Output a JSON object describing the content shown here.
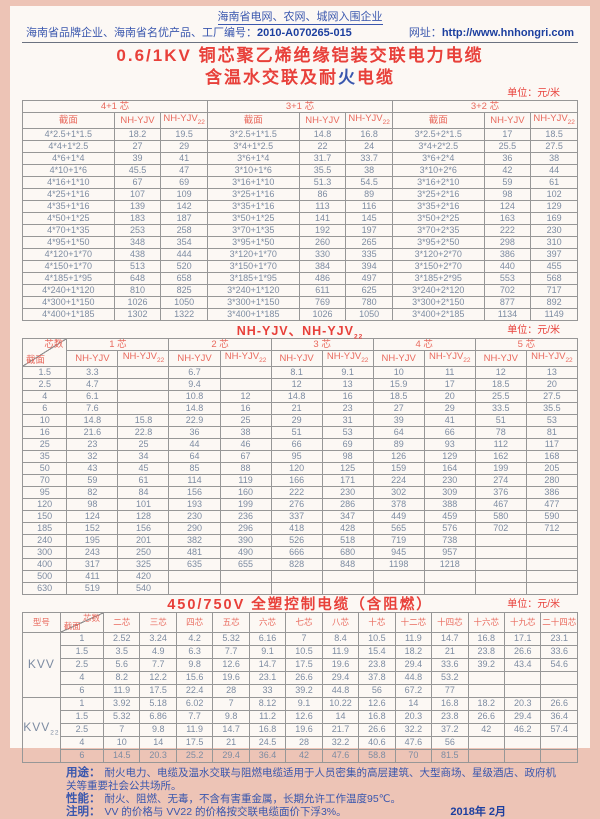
{
  "colors": {
    "accent_red": "#e8403a",
    "header_pink": "#e96a5e",
    "ink_blue": "#3a57ae",
    "bold_blue": "#1c3f9f",
    "data_gray_blue": "#7d8ca2",
    "frame_pink": "#edc4b6"
  },
  "header": {
    "line1": "海南省电网、农网、城网入围企业",
    "line2_prefix": "海南省品牌企业、海南省名优产品、工厂编号：",
    "factory_code": "2010-A070265-015",
    "url_label": "网址：",
    "url": "http://www.hnhongri.com"
  },
  "title": {
    "line1": "0.6/1KV 铜芯聚乙烯绝缘铠装交联电力电缆",
    "subtitle_parts": [
      {
        "text": "含温水交联及耐",
        "color": "#e8403a"
      },
      {
        "text": "火",
        "color": "#3a57ae"
      },
      {
        "text": "电缆",
        "color": "#e8403a"
      }
    ]
  },
  "table1": {
    "unit": "单位：元/米",
    "groups": [
      "4+1 芯",
      "3+1 芯",
      "3+2 芯"
    ],
    "col_headers": [
      {
        "t": "截面"
      },
      {
        "t": "NH-YJV"
      },
      {
        "t": "NH-YJV",
        "sub": "22"
      }
    ],
    "rows": [
      [
        "4*2.5+1*1.5",
        "18.2",
        "19.5",
        "3*2.5+1*1.5",
        "14.8",
        "16.8",
        "3*2.5+2*1.5",
        "17",
        "18.5"
      ],
      [
        "4*4+1*2.5",
        "27",
        "29",
        "3*4+1*2.5",
        "22",
        "24",
        "3*4+2*2.5",
        "25.5",
        "27.5"
      ],
      [
        "4*6+1*4",
        "39",
        "41",
        "3*6+1*4",
        "31.7",
        "33.7",
        "3*6+2*4",
        "36",
        "38"
      ],
      [
        "4*10+1*6",
        "45.5",
        "47",
        "3*10+1*6",
        "35.5",
        "38",
        "3*10+2*6",
        "42",
        "44"
      ],
      [
        "4*16+1*10",
        "67",
        "69",
        "3*16+1*10",
        "51.3",
        "54.5",
        "3*16+2*10",
        "59",
        "61"
      ],
      [
        "4*25+1*16",
        "107",
        "109",
        "3*25+1*16",
        "86",
        "89",
        "3*25+2*16",
        "98",
        "102"
      ],
      [
        "4*35+1*16",
        "139",
        "142",
        "3*35+1*16",
        "113",
        "116",
        "3*35+2*16",
        "124",
        "129"
      ],
      [
        "4*50+1*25",
        "183",
        "187",
        "3*50+1*25",
        "141",
        "145",
        "3*50+2*25",
        "163",
        "169"
      ],
      [
        "4*70+1*35",
        "253",
        "258",
        "3*70+1*35",
        "192",
        "197",
        "3*70+2*35",
        "222",
        "230"
      ],
      [
        "4*95+1*50",
        "348",
        "354",
        "3*95+1*50",
        "260",
        "265",
        "3*95+2*50",
        "298",
        "310"
      ],
      [
        "4*120+1*70",
        "438",
        "444",
        "3*120+1*70",
        "330",
        "335",
        "3*120+2*70",
        "386",
        "397"
      ],
      [
        "4*150+1*70",
        "513",
        "520",
        "3*150+1*70",
        "384",
        "394",
        "3*150+2*70",
        "440",
        "455"
      ],
      [
        "4*185+1*95",
        "648",
        "658",
        "3*185+1*95",
        "486",
        "497",
        "3*185+2*95",
        "553",
        "568"
      ],
      [
        "4*240+1*120",
        "810",
        "825",
        "3*240+1*120",
        "611",
        "625",
        "3*240+2*120",
        "702",
        "717"
      ],
      [
        "4*300+1*150",
        "1026",
        "1050",
        "3*300+1*150",
        "769",
        "780",
        "3*300+2*150",
        "877",
        "892"
      ],
      [
        "4*400+1*185",
        "1302",
        "1322",
        "3*400+1*185",
        "1026",
        "1050",
        "3*400+2*185",
        "1134",
        "1149"
      ]
    ]
  },
  "table2": {
    "title": "NH-YJV、NH-YJV",
    "title_sub": "22",
    "unit": "单位：元/米",
    "corner": {
      "top": "芯数",
      "bottom": "截面"
    },
    "groups": [
      "1 芯",
      "2 芯",
      "3 芯",
      "4 芯",
      "5 芯"
    ],
    "col_headers": [
      {
        "t": "NH-YJV"
      },
      {
        "t": "NH-YJV",
        "sub": "22"
      }
    ],
    "rows": [
      [
        "1.5",
        "3.3",
        "",
        "6.7",
        "",
        "8.1",
        "9.1",
        "10",
        "11",
        "12",
        "13"
      ],
      [
        "2.5",
        "4.7",
        "",
        "9.4",
        "",
        "12",
        "13",
        "15.9",
        "17",
        "18.5",
        "20"
      ],
      [
        "4",
        "6.1",
        "",
        "10.8",
        "12",
        "14.8",
        "16",
        "18.5",
        "20",
        "25.5",
        "27.5"
      ],
      [
        "6",
        "7.6",
        "",
        "14.8",
        "16",
        "21",
        "23",
        "27",
        "29",
        "33.5",
        "35.5"
      ],
      [
        "10",
        "14.8",
        "15.8",
        "22.9",
        "25",
        "29",
        "31",
        "39",
        "41",
        "51",
        "53"
      ],
      [
        "16",
        "21.6",
        "22.8",
        "36",
        "38",
        "51",
        "53",
        "64",
        "66",
        "78",
        "81"
      ],
      [
        "25",
        "23",
        "25",
        "44",
        "46",
        "66",
        "69",
        "89",
        "93",
        "112",
        "117"
      ],
      [
        "35",
        "32",
        "34",
        "64",
        "67",
        "95",
        "98",
        "126",
        "129",
        "162",
        "168"
      ],
      [
        "50",
        "43",
        "45",
        "85",
        "88",
        "120",
        "125",
        "159",
        "164",
        "199",
        "205"
      ],
      [
        "70",
        "59",
        "61",
        "114",
        "119",
        "166",
        "171",
        "224",
        "230",
        "274",
        "280"
      ],
      [
        "95",
        "82",
        "84",
        "156",
        "160",
        "222",
        "230",
        "302",
        "309",
        "376",
        "386"
      ],
      [
        "120",
        "98",
        "101",
        "193",
        "199",
        "276",
        "286",
        "378",
        "388",
        "467",
        "477"
      ],
      [
        "150",
        "124",
        "128",
        "230",
        "236",
        "337",
        "347",
        "449",
        "459",
        "580",
        "590"
      ],
      [
        "185",
        "152",
        "156",
        "290",
        "296",
        "418",
        "428",
        "565",
        "576",
        "702",
        "712"
      ],
      [
        "240",
        "195",
        "201",
        "382",
        "390",
        "526",
        "518",
        "719",
        "738",
        "",
        ""
      ],
      [
        "300",
        "243",
        "250",
        "481",
        "490",
        "666",
        "680",
        "945",
        "957",
        "",
        ""
      ],
      [
        "400",
        "317",
        "325",
        "635",
        "655",
        "828",
        "848",
        "1198",
        "1218",
        "",
        ""
      ],
      [
        "500",
        "411",
        "420",
        "",
        "",
        "",
        "",
        "",
        "",
        "",
        ""
      ],
      [
        "630",
        "519",
        "540",
        "",
        "",
        "",
        "",
        "",
        "",
        "",
        ""
      ]
    ]
  },
  "table3": {
    "title": "450/750V 全塑控制电缆（含阻燃）",
    "unit": "单位：元/米",
    "model_header": "型号",
    "corner": {
      "top": "芯数",
      "bottom": "截面"
    },
    "cols": [
      "二芯",
      "三芯",
      "四芯",
      "五芯",
      "六芯",
      "七芯",
      "八芯",
      "十芯",
      "十二芯",
      "十四芯",
      "十六芯",
      "十九芯",
      "二十四芯"
    ],
    "groups": [
      {
        "model": "KVV",
        "sub": "",
        "rows": [
          {
            "size": "1",
            "values": [
              "2.52",
              "3.24",
              "4.2",
              "5.32",
              "6.16",
              "7",
              "8.4",
              "10.5",
              "11.9",
              "14.7",
              "16.8",
              "17.1",
              "23.1"
            ]
          },
          {
            "size": "1.5",
            "values": [
              "3.5",
              "4.9",
              "6.3",
              "7.7",
              "9.1",
              "10.5",
              "11.9",
              "15.4",
              "18.2",
              "21",
              "23.8",
              "26.6",
              "33.6"
            ]
          },
          {
            "size": "2.5",
            "values": [
              "5.6",
              "7.7",
              "9.8",
              "12.6",
              "14.7",
              "17.5",
              "19.6",
              "23.8",
              "29.4",
              "33.6",
              "39.2",
              "43.4",
              "54.6"
            ]
          },
          {
            "size": "4",
            "values": [
              "8.2",
              "12.2",
              "15.6",
              "19.6",
              "23.1",
              "26.6",
              "29.4",
              "37.8",
              "44.8",
              "53.2",
              "",
              "",
              ""
            ]
          },
          {
            "size": "6",
            "values": [
              "11.9",
              "17.5",
              "22.4",
              "28",
              "33",
              "39.2",
              "44.8",
              "56",
              "67.2",
              "77",
              "",
              "",
              ""
            ]
          }
        ]
      },
      {
        "model": "KVV",
        "sub": "22",
        "rows": [
          {
            "size": "1",
            "values": [
              "3.92",
              "5.18",
              "6.02",
              "7",
              "8.12",
              "9.1",
              "10.22",
              "12.6",
              "14",
              "16.8",
              "18.2",
              "20.3",
              "26.6"
            ]
          },
          {
            "size": "1.5",
            "values": [
              "5.32",
              "6.86",
              "7.7",
              "9.8",
              "11.2",
              "12.6",
              "14",
              "16.8",
              "20.3",
              "23.8",
              "26.6",
              "29.4",
              "36.4"
            ]
          },
          {
            "size": "2.5",
            "values": [
              "7",
              "9.8",
              "11.9",
              "14.7",
              "16.8",
              "19.6",
              "21.7",
              "26.6",
              "32.2",
              "37.2",
              "42",
              "46.2",
              "57.4"
            ]
          },
          {
            "size": "4",
            "values": [
              "10",
              "14",
              "17.5",
              "21",
              "24.5",
              "28",
              "32.2",
              "40.6",
              "47.6",
              "56",
              "",
              "",
              ""
            ]
          },
          {
            "size": "6",
            "values": [
              "14.5",
              "20.3",
              "25.2",
              "29.4",
              "36.4",
              "42",
              "47.6",
              "58.8",
              "70",
              "81.5",
              "",
              "",
              ""
            ]
          }
        ]
      }
    ]
  },
  "footer": {
    "usage_label": "用途：",
    "usage": "耐火电力、电缆及温水交联与阻燃电缆适用于人员密集的高层建筑、大型商场、星级酒店、政府机关等重要社会公共场所。",
    "perf_label": "性能：",
    "perf": "耐火、阻燃、无毒，不含有害重金属，长期允许工作温度95℃。",
    "note_label": "注明：",
    "note": "VV 的价格与 VV22 的价格按交联电缆面价下浮3%。",
    "date": "2018年 2月"
  }
}
